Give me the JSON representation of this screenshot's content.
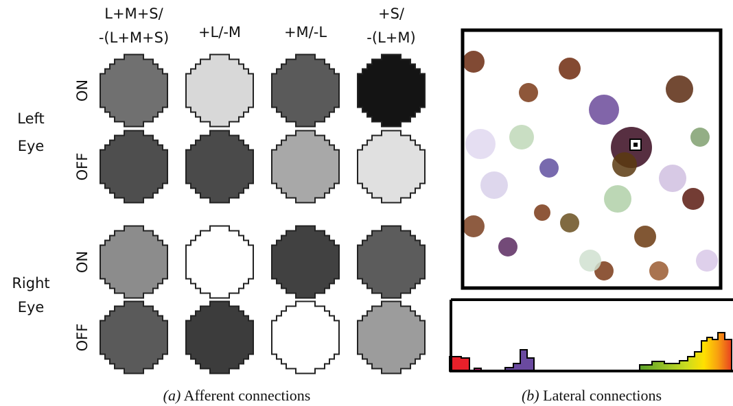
{
  "panel_a": {
    "column_headers": [
      [
        "L+M+S/",
        "-(L+M+S)"
      ],
      [
        "+L/-M"
      ],
      [
        "+M/-L"
      ],
      [
        "+S/",
        "-(L+M)"
      ]
    ],
    "eyes": [
      {
        "label": [
          "Left",
          "Eye"
        ],
        "rows": [
          "ON",
          "OFF"
        ]
      },
      {
        "label": [
          "Right",
          "Eye"
        ],
        "rows": [
          "ON",
          "OFF"
        ]
      }
    ],
    "caption": {
      "marker": "(a)",
      "text": "Afferent connections"
    }
  },
  "panel_b": {
    "caption": {
      "marker": "(b)",
      "text": "Lateral connections"
    }
  }
}
